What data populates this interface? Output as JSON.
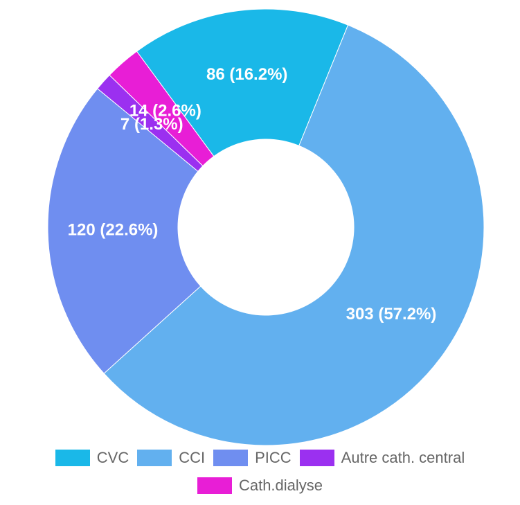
{
  "chart_data": {
    "type": "doughnut",
    "categories": [
      "CVC",
      "CCI",
      "PICC",
      "Autre cath. central",
      "Cath.dialyse"
    ],
    "values": [
      86,
      303,
      120,
      7,
      14
    ],
    "value_labels": [
      "86 (16.2%)",
      "303 (57.2%)",
      "120 (22.6%)",
      "7 (1.3%)",
      "14 (2.6%)"
    ],
    "colors": [
      "#1ab8e8",
      "#62b0ef",
      "#6f8ef0",
      "#9b30f0",
      "#e81ed6"
    ],
    "legend": "bottom"
  }
}
